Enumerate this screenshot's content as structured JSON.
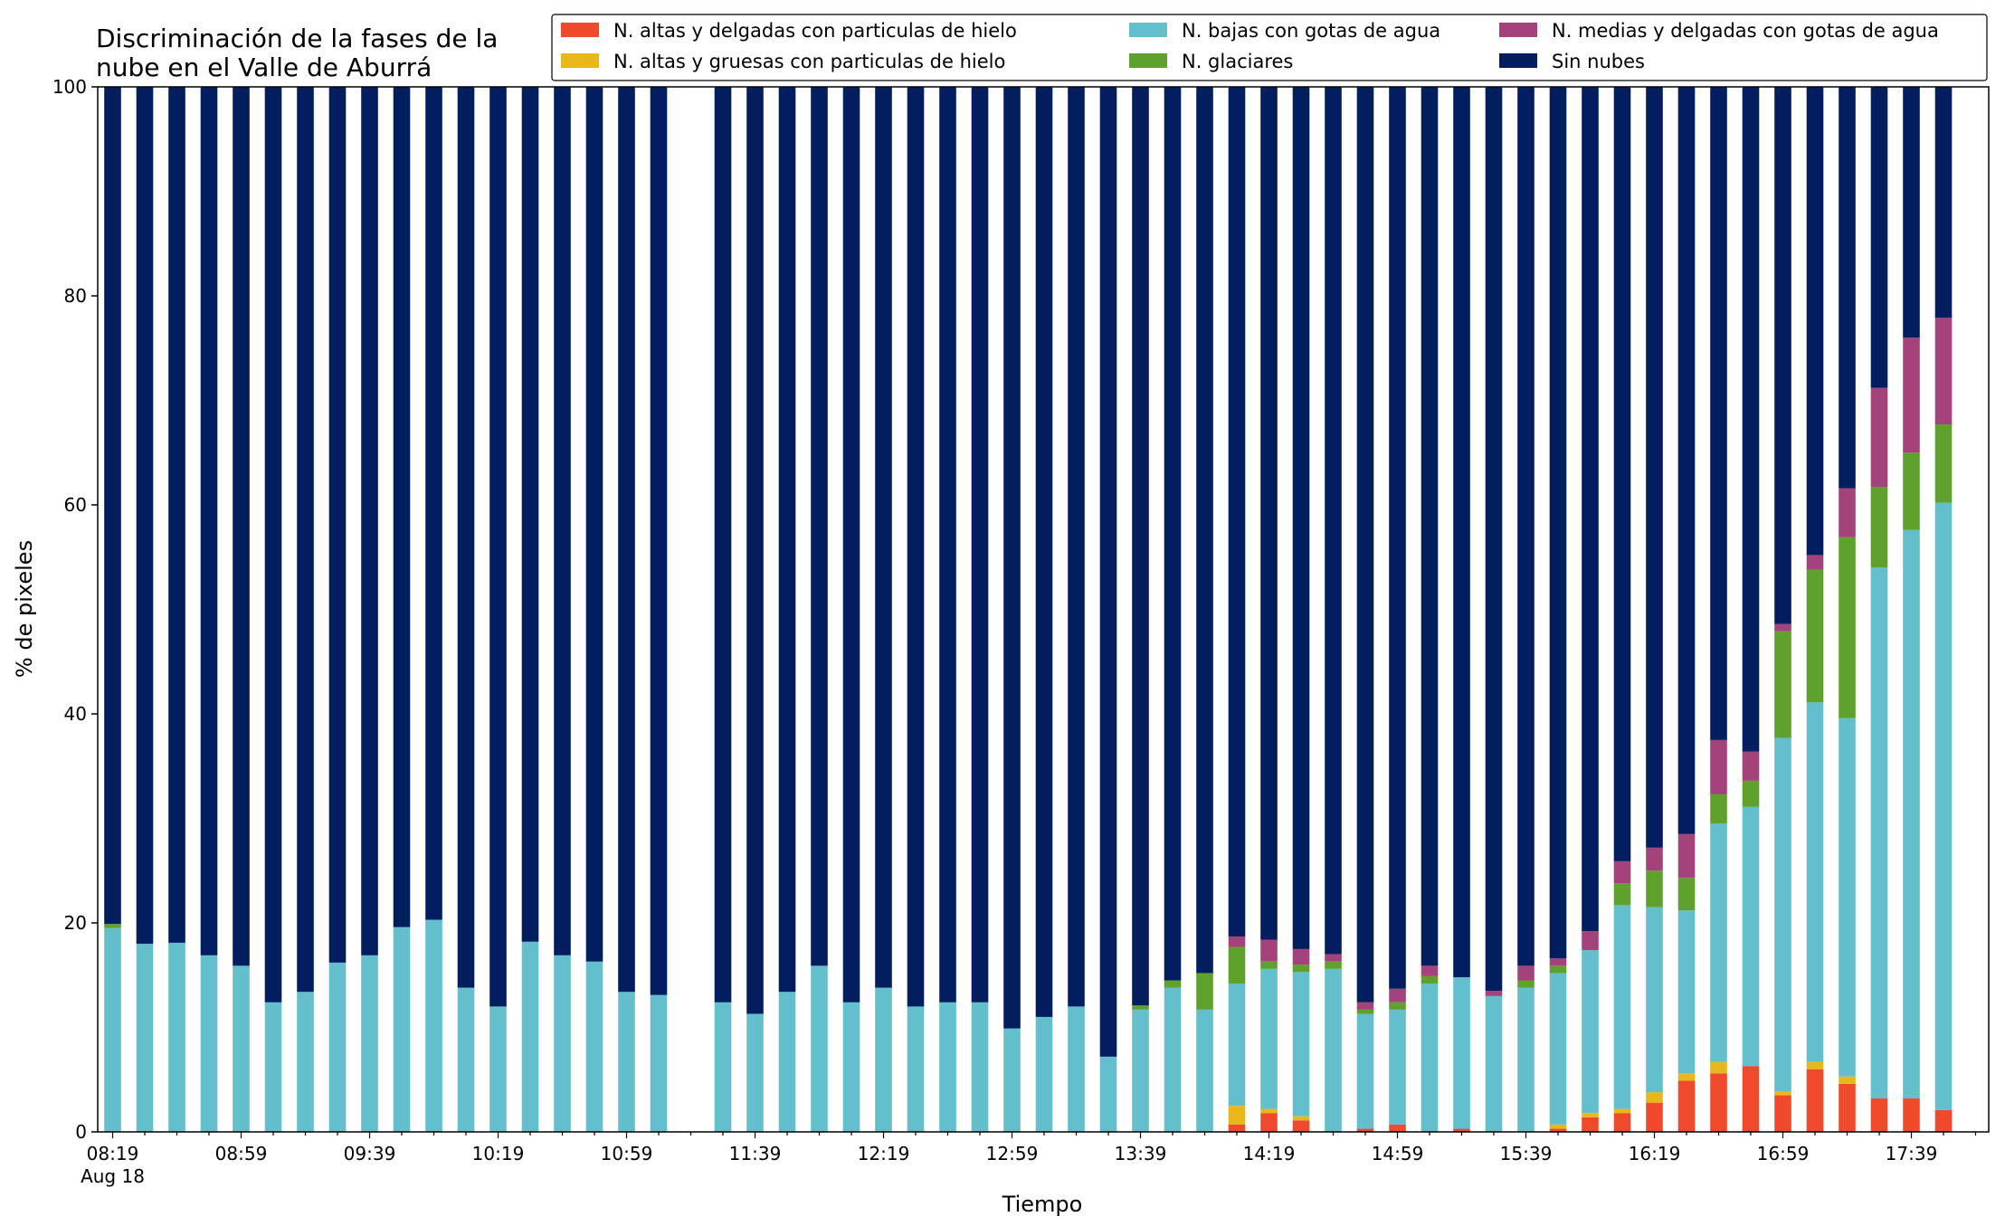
{
  "chart_data": {
    "type": "bar",
    "stacked": true,
    "title_lines": [
      "Discriminación de la fases de la",
      "nube en el Valle de Aburrá"
    ],
    "xlabel": "Tiempo",
    "ylabel": "% de pixeles",
    "ylim": [
      0,
      100
    ],
    "y_ticks": [
      0,
      20,
      40,
      60,
      80,
      100
    ],
    "x_tick_labels": [
      "08:19",
      "08:59",
      "09:39",
      "10:19",
      "10:59",
      "11:39",
      "12:19",
      "12:59",
      "13:39",
      "14:19",
      "14:59",
      "15:39",
      "16:19",
      "16:59",
      "17:39"
    ],
    "x_date_label": "Aug 18",
    "legend_position": "top-right",
    "legend_columns": 3,
    "categories": [
      "08:19",
      "08:29",
      "08:39",
      "08:49",
      "08:59",
      "09:09",
      "09:19",
      "09:29",
      "09:39",
      "09:49",
      "09:59",
      "10:09",
      "10:19",
      "10:29",
      "10:39",
      "10:49",
      "10:59",
      "11:09",
      "11:19",
      "11:29",
      "11:39",
      "11:49",
      "11:59",
      "12:09",
      "12:19",
      "12:29",
      "12:39",
      "12:49",
      "12:59",
      "13:09",
      "13:19",
      "13:29",
      "13:39",
      "13:49",
      "13:59",
      "14:09",
      "14:19",
      "14:29",
      "14:39",
      "14:49",
      "14:59",
      "15:09",
      "15:19",
      "15:29",
      "15:39",
      "15:49",
      "15:59",
      "16:09",
      "16:19",
      "16:29",
      "16:39",
      "16:49",
      "16:59",
      "17:09",
      "17:19",
      "17:29",
      "17:39",
      "17:49"
    ],
    "series": [
      {
        "name": "N. altas y delgadas con particulas de hielo",
        "color": "#ee4a2b",
        "values": [
          0,
          0,
          0,
          0,
          0,
          0,
          0,
          0,
          0,
          0,
          0,
          0,
          0,
          0,
          0,
          0,
          0,
          0,
          null,
          0,
          0,
          0,
          0,
          0,
          0,
          0,
          0,
          0,
          0,
          0,
          0,
          0,
          0,
          0,
          0,
          0.7,
          1.8,
          1.1,
          0,
          0.3,
          0.7,
          0,
          0.3,
          0,
          0,
          0.3,
          1.4,
          1.8,
          2.8,
          4.9,
          5.6,
          6.3,
          3.5,
          6.0,
          4.6,
          3.2,
          3.2,
          2.1
        ]
      },
      {
        "name": "N. altas y gruesas con particulas de hielo",
        "color": "#e8b81a",
        "values": [
          0,
          0,
          0,
          0,
          0,
          0,
          0,
          0,
          0,
          0,
          0,
          0,
          0,
          0,
          0,
          0,
          0,
          0,
          null,
          0,
          0,
          0,
          0,
          0,
          0,
          0,
          0,
          0,
          0,
          0,
          0,
          0,
          0,
          0,
          0,
          1.8,
          0.4,
          0.4,
          0,
          0,
          0,
          0,
          0,
          0,
          0,
          0.4,
          0.4,
          0.4,
          1.0,
          0.7,
          1.1,
          0,
          0.4,
          0.7,
          0.7,
          0,
          0,
          0
        ]
      },
      {
        "name": "N. bajas con gotas de agua",
        "color": "#64bfcc",
        "values": [
          19.5,
          18.0,
          18.1,
          16.9,
          15.9,
          12.4,
          13.4,
          16.2,
          16.9,
          19.6,
          20.3,
          13.8,
          12.0,
          18.2,
          16.9,
          16.3,
          13.4,
          13.1,
          null,
          12.4,
          11.3,
          13.4,
          15.9,
          12.4,
          13.8,
          12.0,
          12.4,
          12.4,
          9.9,
          11.0,
          12.0,
          7.2,
          11.7,
          13.8,
          11.7,
          11.7,
          13.4,
          13.8,
          15.6,
          11.0,
          11.0,
          14.2,
          14.5,
          13.0,
          13.8,
          14.5,
          15.6,
          19.5,
          17.7,
          15.6,
          22.8,
          24.8,
          33.8,
          34.4,
          34.3,
          50.8,
          54.4,
          58.1
        ]
      },
      {
        "name": "N. glaciares",
        "color": "#5ea12c",
        "values": [
          0.4,
          0,
          0,
          0,
          0,
          0,
          0,
          0,
          0,
          0,
          0,
          0,
          0,
          0,
          0,
          0,
          0,
          0,
          null,
          0,
          0,
          0,
          0,
          0,
          0,
          0,
          0,
          0,
          0,
          0,
          0,
          0,
          0.4,
          0.7,
          3.5,
          3.5,
          0.7,
          0.7,
          0.7,
          0.4,
          0.7,
          0.7,
          0,
          0,
          0.7,
          0.7,
          0,
          2.1,
          3.5,
          3.1,
          2.8,
          2.5,
          10.2,
          12.7,
          17.3,
          7.7,
          7.4,
          7.5
        ]
      },
      {
        "name": "N. medias y delgadas con gotas de agua",
        "color": "#a4427b",
        "values": [
          0,
          0,
          0,
          0,
          0,
          0,
          0,
          0,
          0,
          0,
          0,
          0,
          0,
          0,
          0,
          0,
          0,
          0,
          null,
          0,
          0,
          0,
          0,
          0,
          0,
          0,
          0,
          0,
          0,
          0,
          0,
          0,
          0,
          0,
          0,
          1.0,
          2.1,
          1.5,
          0.7,
          0.7,
          1.3,
          1.0,
          0,
          0.5,
          1.4,
          0.7,
          1.8,
          2.1,
          2.2,
          4.2,
          5.2,
          2.8,
          0.7,
          1.4,
          4.7,
          9.5,
          11.0,
          10.2
        ]
      },
      {
        "name": "Sin nubes",
        "color": "#031e5f",
        "values": [
          80.1,
          82.0,
          81.9,
          83.1,
          84.1,
          87.6,
          86.6,
          83.8,
          83.1,
          80.4,
          79.7,
          86.2,
          88.0,
          81.8,
          83.1,
          83.7,
          86.6,
          86.9,
          null,
          87.6,
          88.7,
          86.6,
          84.1,
          87.6,
          86.2,
          88.0,
          87.6,
          87.6,
          90.1,
          89.0,
          88.0,
          92.8,
          87.9,
          85.5,
          84.8,
          81.3,
          81.6,
          82.5,
          83.0,
          87.6,
          86.3,
          84.1,
          85.2,
          86.5,
          84.1,
          83.4,
          80.8,
          74.1,
          72.8,
          71.5,
          62.5,
          63.6,
          51.4,
          44.8,
          38.4,
          28.8,
          24.0,
          22.1
        ]
      }
    ]
  }
}
